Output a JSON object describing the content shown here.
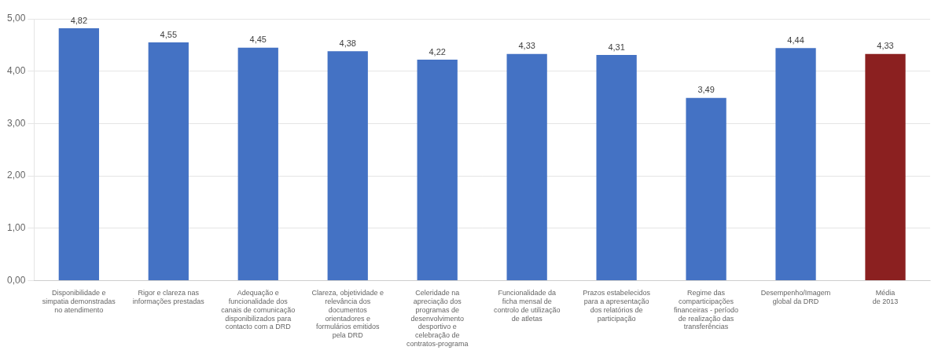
{
  "chart_data": {
    "type": "bar",
    "categories": [
      "Disponibilidade e\nsimpatia demonstradas\nno atendimento",
      "Rigor e clareza nas\ninformações prestadas",
      "Adequação e\nfuncionalidade dos\ncanais de comunicação\ndisponibilizados para\ncontacto com a DRD",
      "Clareza, objetividade e\nrelevância dos\ndocumentos\norientadores e\nformulários emitidos\npela DRD",
      "Celeridade na\napreciação dos\nprogramas de\ndesenvolvimento\ndesportivo e\ncelebração de\ncontratos-programa",
      "Funcionalidade da\nficha mensal de\ncontrolo de utilização\nde atletas",
      "Prazos estabelecidos\npara a apresentação\ndos relatórios de\nparticipação",
      "Regime das\ncomparticipações\nfinanceiras - período\nde realização das\ntransferências",
      "Desempenho/Imagem\nglobal da DRD",
      "Média\nde 2013"
    ],
    "values": [
      4.82,
      4.55,
      4.45,
      4.38,
      4.22,
      4.33,
      4.31,
      3.49,
      4.44,
      4.33
    ],
    "value_labels": [
      "4,82",
      "4,55",
      "4,45",
      "4,38",
      "4,22",
      "4,33",
      "4,31",
      "3,49",
      "4,44",
      "4,33"
    ],
    "colors": [
      "#4472c4",
      "#4472c4",
      "#4472c4",
      "#4472c4",
      "#4472c4",
      "#4472c4",
      "#4472c4",
      "#4472c4",
      "#4472c4",
      "#8b2020"
    ],
    "ylim": [
      0,
      5.0
    ],
    "yticks": [
      {
        "value": 0.0,
        "label": "0,00"
      },
      {
        "value": 1.0,
        "label": "1,00"
      },
      {
        "value": 2.0,
        "label": "2,00"
      },
      {
        "value": 3.0,
        "label": "3,00"
      },
      {
        "value": 4.0,
        "label": "4,00"
      },
      {
        "value": 5.0,
        "label": "5,00"
      }
    ],
    "grid": true,
    "data_labels": true
  }
}
